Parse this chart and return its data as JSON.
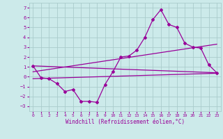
{
  "background_color": "#cceaea",
  "grid_color": "#aacccc",
  "line_color": "#990099",
  "xlabel": "Windchill (Refroidissement éolien,°C)",
  "xlim": [
    -0.5,
    23.5
  ],
  "ylim": [
    -3.5,
    7.5
  ],
  "yticks": [
    -3,
    -2,
    -1,
    0,
    1,
    2,
    3,
    4,
    5,
    6,
    7
  ],
  "xticks": [
    0,
    1,
    2,
    3,
    4,
    5,
    6,
    7,
    8,
    9,
    10,
    11,
    12,
    13,
    14,
    15,
    16,
    17,
    18,
    19,
    20,
    21,
    22,
    23
  ],
  "series1_x": [
    0,
    1,
    2,
    3,
    4,
    5,
    6,
    7,
    8,
    9,
    10,
    11,
    12,
    13,
    14,
    15,
    16,
    17,
    18,
    19,
    20,
    21,
    22,
    23
  ],
  "series1_y": [
    1.1,
    -0.1,
    -0.2,
    -0.7,
    -1.5,
    -1.3,
    -2.5,
    -2.5,
    -2.6,
    -0.8,
    0.5,
    2.0,
    2.1,
    2.7,
    4.0,
    5.8,
    6.8,
    5.3,
    5.0,
    3.4,
    3.0,
    2.9,
    1.2,
    0.4
  ],
  "line1_x": [
    0,
    23
  ],
  "line1_y": [
    1.1,
    0.4
  ],
  "line2_x": [
    0,
    23
  ],
  "line2_y": [
    -0.2,
    0.35
  ],
  "line3_x": [
    0,
    23
  ],
  "line3_y": [
    0.5,
    3.3
  ]
}
